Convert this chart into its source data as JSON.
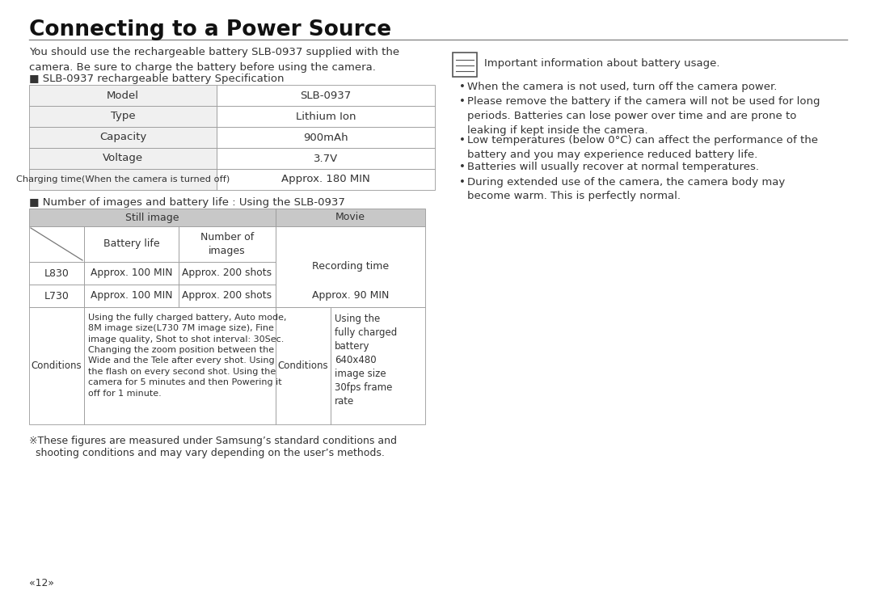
{
  "title": "Connecting to a Power Source",
  "intro_text": "You should use the rechargeable battery SLB-0937 supplied with the\ncamera. Be sure to charge the battery before using the camera.",
  "spec_label": "■ SLB-0937 rechargeable battery Specification",
  "spec_table": [
    [
      "Model",
      "SLB-0937"
    ],
    [
      "Type",
      "Lithium Ion"
    ],
    [
      "Capacity",
      "900mAh"
    ],
    [
      "Voltage",
      "3.7V"
    ],
    [
      "Charging time(When the camera is turned off)",
      "Approx. 180 MIN"
    ]
  ],
  "battery_label": "■ Number of images and battery life : Using the SLB-0937",
  "important_header": "Important information about battery usage.",
  "important_bullets": [
    [
      "When the camera is not used, turn off the camera power.",
      1
    ],
    [
      "Please remove the battery if the camera will not be used for long\nperiods. Batteries can lose power over time and are prone to\nleaking if kept inside the camera.",
      3
    ],
    [
      "Low temperatures (below 0°C) can affect the performance of the\nbattery and you may experience reduced battery life.",
      2
    ],
    [
      "Batteries will usually recover at normal temperatures.",
      1
    ],
    [
      "During extended use of the camera, the camera body may\nbecome warm. This is perfectly normal.",
      2
    ]
  ],
  "footnote1": "※These figures are measured under Samsung’s standard conditions and",
  "footnote2": "  shooting conditions and may vary depending on the user’s methods.",
  "page_number": "«12»",
  "bg_color": "#ffffff",
  "text_color": "#333333",
  "table_header_bg": "#c8c8c8",
  "table_cell_bg": "#f0f0f0",
  "table_border": "#999999",
  "title_color": "#111111",
  "line_color": "#888888"
}
